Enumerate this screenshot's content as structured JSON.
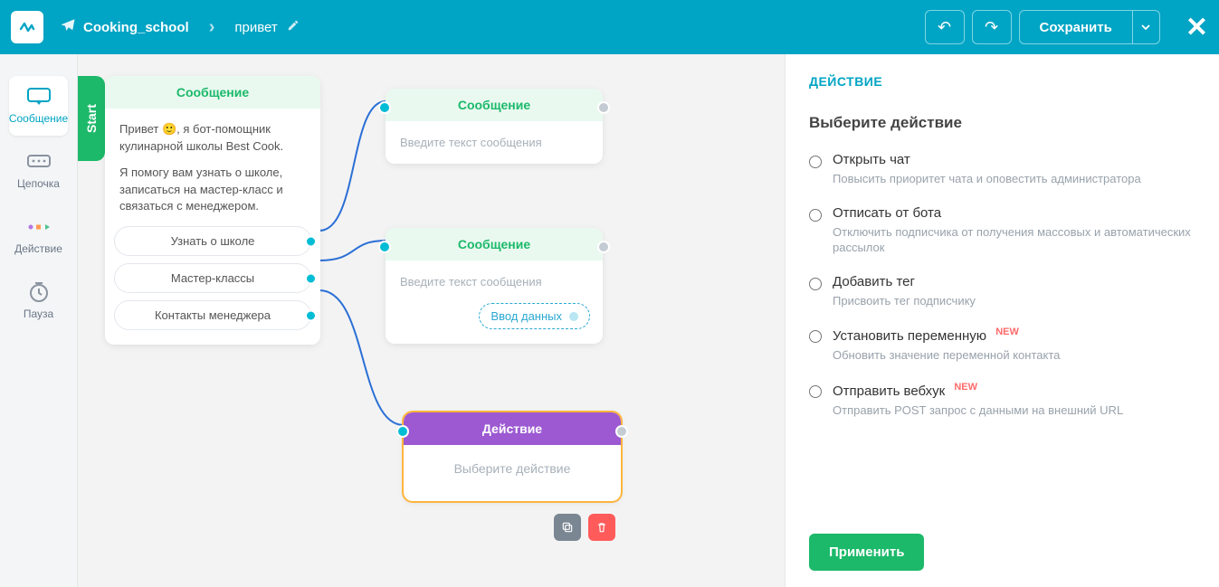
{
  "colors": {
    "topbar": "#00a4c4",
    "topbar_border": "#7fd6e6",
    "accent_green": "#1cb96a",
    "accent_green_bg": "#e9f9f0",
    "accent_purple": "#9c59d1",
    "accent_orange": "#ffb53d",
    "link_cyan": "#00bcd4",
    "text_muted": "#99a2ab",
    "danger": "#ff5b5b",
    "new_badge": "#ff6b6b"
  },
  "topbar": {
    "bot_name": "Cooking_school",
    "flow_name": "привет",
    "save_label": "Сохранить"
  },
  "rail": {
    "items": [
      {
        "id": "message",
        "label": "Сообщение"
      },
      {
        "id": "chain",
        "label": "Цепочка"
      },
      {
        "id": "action",
        "label": "Действие"
      },
      {
        "id": "pause",
        "label": "Пауза"
      }
    ]
  },
  "nodes": {
    "start": {
      "tab_label": "Start",
      "header": "Сообщение",
      "para1": "Привет 🙂, я бот-помощник кулинарной школы Best Cook.",
      "para2": "Я помогу вам узнать о школе, записаться на мастер-класс и связаться с менеджером.",
      "buttons": [
        {
          "label": "Узнать о школе"
        },
        {
          "label": "Мастер-классы"
        },
        {
          "label": "Контакты менеджера"
        }
      ]
    },
    "msg1": {
      "header": "Сообщение",
      "placeholder": "Введите текст сообщения"
    },
    "msg2": {
      "header": "Сообщение",
      "placeholder": "Введите текст сообщения",
      "chip_label": "Ввод данных"
    },
    "action": {
      "header": "Действие",
      "placeholder": "Выберите действие"
    }
  },
  "panel": {
    "title": "ДЕЙСТВИЕ",
    "subtitle": "Выберите действие",
    "options": [
      {
        "label": "Открыть чат",
        "desc": "Повысить приоритет чата и оповестить администратора",
        "new": false
      },
      {
        "label": "Отписать от бота",
        "desc": "Отключить подписчика от получения массовых и автоматических рассылок",
        "new": false
      },
      {
        "label": "Добавить тег",
        "desc": "Присвоить тег подписчику",
        "new": false
      },
      {
        "label": "Установить переменную",
        "desc": "Обновить значение переменной контакта",
        "new": true
      },
      {
        "label": "Отправить вебхук",
        "desc": "Отправить POST запрос с данными на внешний URL",
        "new": true
      }
    ],
    "new_label": "NEW",
    "apply_label": "Применить"
  }
}
